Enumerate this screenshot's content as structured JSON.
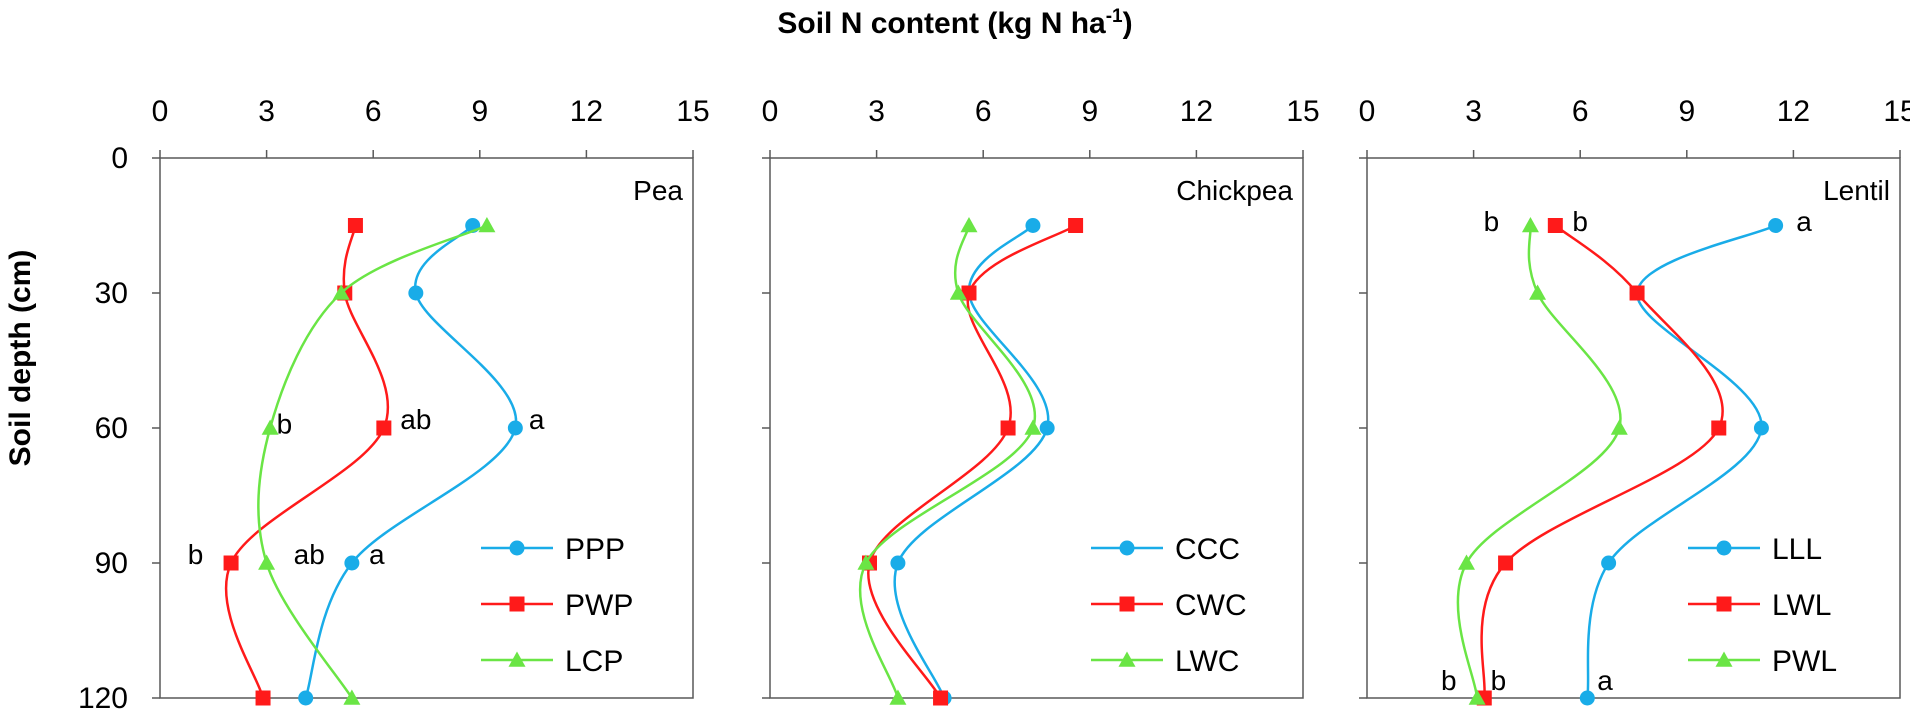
{
  "chart_data": {
    "type": "line",
    "title": "Soil N content (kg N ha",
    "title_sup": "-1",
    "title_end": ")",
    "ylabel": "Soil depth (cm)",
    "xlim": [
      0,
      15
    ],
    "ylim": [
      0,
      120
    ],
    "y_reversed": true,
    "x_ticks": [
      "0",
      "3",
      "6",
      "9",
      "12",
      "15"
    ],
    "y_ticks": [
      "0",
      "30",
      "60",
      "90",
      "120"
    ],
    "x_tick_values": [
      0,
      3,
      6,
      9,
      12,
      15
    ],
    "y_tick_values": [
      0,
      30,
      60,
      90,
      120
    ],
    "grid": false,
    "legend_position": "bottom-right",
    "depths": [
      15,
      30,
      60,
      90,
      120
    ],
    "colors": {
      "blue": "#19ace8",
      "red": "#ff1a1a",
      "green": "#6ae545"
    },
    "panels": [
      {
        "title": "Pea",
        "series": [
          {
            "name": "PPP",
            "color": "#19ace8",
            "marker": "circle",
            "values": [
              8.8,
              7.2,
              10.0,
              5.4,
              4.1
            ]
          },
          {
            "name": "PWP",
            "color": "#ff1a1a",
            "marker": "square",
            "values": [
              5.5,
              5.2,
              6.3,
              2.0,
              2.9
            ]
          },
          {
            "name": "LCP",
            "color": "#6ae545",
            "marker": "triangle",
            "values": [
              9.2,
              5.1,
              3.1,
              3.0,
              5.4
            ]
          }
        ],
        "annotations": [
          {
            "text": "a",
            "x": 10.6,
            "y": 58
          },
          {
            "text": "ab",
            "x": 7.2,
            "y": 58
          },
          {
            "text": "b",
            "x": 3.5,
            "y": 59
          },
          {
            "text": "b",
            "x": 1.0,
            "y": 88
          },
          {
            "text": "ab",
            "x": 4.2,
            "y": 88
          },
          {
            "text": "a",
            "x": 6.1,
            "y": 88
          }
        ]
      },
      {
        "title": "Chickpea",
        "series": [
          {
            "name": "CCC",
            "color": "#19ace8",
            "marker": "circle",
            "values": [
              7.4,
              5.6,
              7.8,
              3.6,
              4.9
            ]
          },
          {
            "name": "CWC",
            "color": "#ff1a1a",
            "marker": "square",
            "values": [
              8.6,
              5.6,
              6.7,
              2.8,
              4.8
            ]
          },
          {
            "name": "LWC",
            "color": "#6ae545",
            "marker": "triangle",
            "values": [
              5.6,
              5.3,
              7.4,
              2.7,
              3.6
            ]
          }
        ],
        "annotations": []
      },
      {
        "title": "Lentil",
        "series": [
          {
            "name": "LLL",
            "color": "#19ace8",
            "marker": "circle",
            "values": [
              11.5,
              7.6,
              11.1,
              6.8,
              6.2
            ]
          },
          {
            "name": "LWL",
            "color": "#ff1a1a",
            "marker": "square",
            "values": [
              5.3,
              7.6,
              9.9,
              3.9,
              3.3
            ]
          },
          {
            "name": "PWL",
            "color": "#6ae545",
            "marker": "triangle",
            "values": [
              4.6,
              4.8,
              7.1,
              2.8,
              3.1
            ]
          }
        ],
        "annotations": [
          {
            "text": "b",
            "x": 3.5,
            "y": 14
          },
          {
            "text": "b",
            "x": 6.0,
            "y": 14
          },
          {
            "text": "a",
            "x": 12.3,
            "y": 14
          },
          {
            "text": "b",
            "x": 2.3,
            "y": 116
          },
          {
            "text": "b",
            "x": 3.7,
            "y": 116
          },
          {
            "text": "a",
            "x": 6.7,
            "y": 116
          }
        ]
      }
    ]
  }
}
